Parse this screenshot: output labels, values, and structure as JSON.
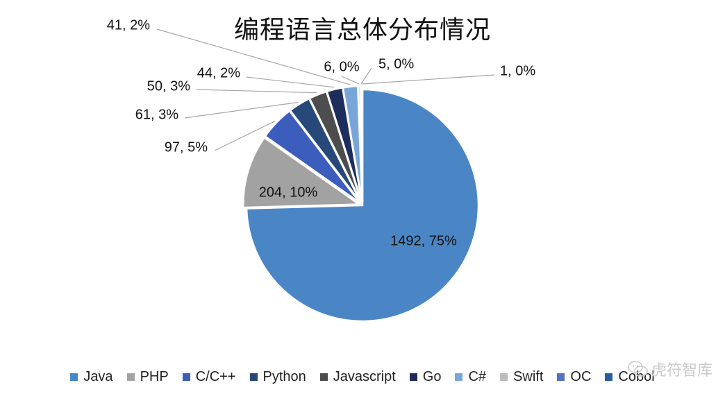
{
  "chart_data": {
    "type": "pie",
    "title": "编程语言总体分布情况",
    "slices": [
      {
        "name": "Java",
        "value": 1492,
        "pct": "75%",
        "label": "1492, 75%",
        "color": "#4a86c5"
      },
      {
        "name": "PHP",
        "value": 204,
        "pct": "10%",
        "label": "204, 10%",
        "color": "#a2a2a2"
      },
      {
        "name": "C/C++",
        "value": 97,
        "pct": "5%",
        "label": "97, 5%",
        "color": "#3d5dbd"
      },
      {
        "name": "Python",
        "value": 61,
        "pct": "3%",
        "label": "61, 3%",
        "color": "#26497a"
      },
      {
        "name": "Javascript",
        "value": 50,
        "pct": "3%",
        "label": "50, 3%",
        "color": "#4d4d4d"
      },
      {
        "name": "Go",
        "value": 44,
        "pct": "2%",
        "label": "44, 2%",
        "color": "#1e2e5c"
      },
      {
        "name": "C#",
        "value": 41,
        "pct": "2%",
        "label": "41, 2%",
        "color": "#78a6d8"
      },
      {
        "name": "Swift",
        "value": 6,
        "pct": "0%",
        "label": "6, 0%",
        "color": "#bcbcbc"
      },
      {
        "name": "OC",
        "value": 5,
        "pct": "0%",
        "label": "5, 0%",
        "color": "#5572c4"
      },
      {
        "name": "Cobol",
        "value": 1,
        "pct": "0%",
        "label": "1, 0%",
        "color": "#2a5ea0"
      }
    ],
    "legend_position": "bottom"
  },
  "watermark": {
    "text": "虎符智库",
    "icon": "wechat-icon"
  }
}
